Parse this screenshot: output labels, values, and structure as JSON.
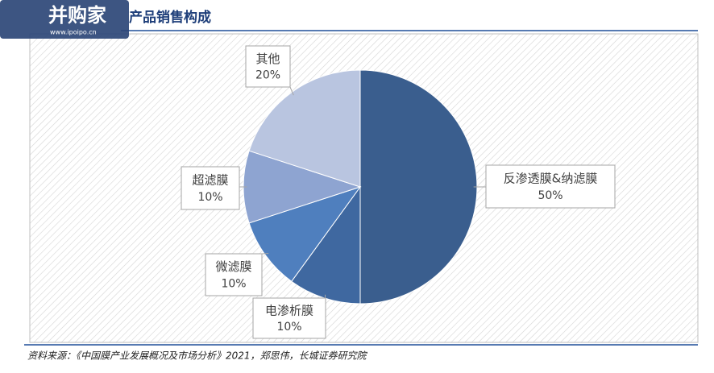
{
  "watermark": {
    "brand": "并购家",
    "url": "www.ipoipo.cn"
  },
  "chart_data": {
    "type": "pie",
    "title": "产品销售构成",
    "categories": [
      "反渗透膜&纳滤膜",
      "电渗析膜",
      "微滤膜",
      "超滤膜",
      "其他"
    ],
    "values": [
      50,
      10,
      10,
      10,
      20
    ],
    "value_labels": [
      "50%",
      "10%",
      "10%",
      "10%",
      "20%"
    ],
    "colors": [
      "#3a5e8e",
      "#3f68a0",
      "#4f7fbe",
      "#8ea4d1",
      "#b9c5e0"
    ],
    "source": "资料来源：《中国膜产业发展概况及市场分析》2021，郑思伟，长城证券研究院"
  }
}
